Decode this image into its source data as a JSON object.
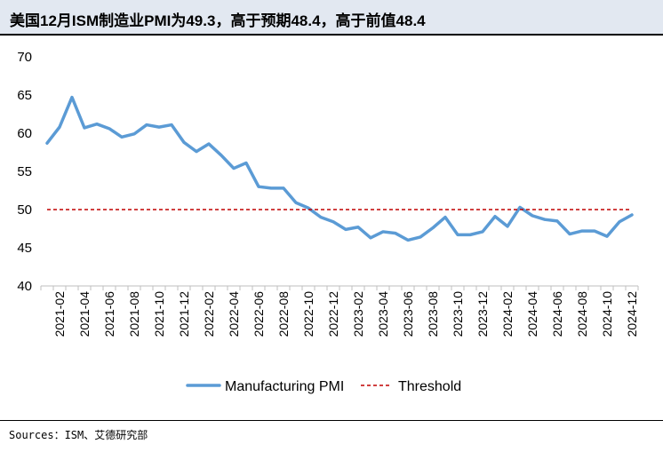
{
  "title": "美国12月ISM制造业PMI为49.3，高于预期48.4，高于前值48.4",
  "source": "Sources：ISM、艾德研究部",
  "chart_data": {
    "type": "line",
    "x": [
      "2021-01",
      "2021-02",
      "2021-03",
      "2021-04",
      "2021-05",
      "2021-06",
      "2021-07",
      "2021-08",
      "2021-09",
      "2021-10",
      "2021-11",
      "2021-12",
      "2022-01",
      "2022-02",
      "2022-03",
      "2022-04",
      "2022-05",
      "2022-06",
      "2022-07",
      "2022-08",
      "2022-09",
      "2022-10",
      "2022-11",
      "2022-12",
      "2023-01",
      "2023-02",
      "2023-03",
      "2023-04",
      "2023-05",
      "2023-06",
      "2023-07",
      "2023-08",
      "2023-09",
      "2023-10",
      "2023-11",
      "2023-12",
      "2024-01",
      "2024-02",
      "2024-03",
      "2024-04",
      "2024-05",
      "2024-06",
      "2024-07",
      "2024-08",
      "2024-09",
      "2024-10",
      "2024-11",
      "2024-12"
    ],
    "x_tick_labels": [
      "2021-02",
      "2021-04",
      "2021-06",
      "2021-08",
      "2021-10",
      "2021-12",
      "2022-02",
      "2022-04",
      "2022-06",
      "2022-08",
      "2022-10",
      "2022-12",
      "2023-02",
      "2023-04",
      "2023-06",
      "2023-08",
      "2023-10",
      "2023-12",
      "2024-02",
      "2024-04",
      "2024-06",
      "2024-08",
      "2024-10",
      "2024-12"
    ],
    "series": [
      {
        "name": "Manufacturing PMI",
        "color": "#5b9bd5",
        "values": [
          58.7,
          60.8,
          64.7,
          60.7,
          61.2,
          60.6,
          59.5,
          59.9,
          61.1,
          60.8,
          61.1,
          58.8,
          57.6,
          58.6,
          57.1,
          55.4,
          56.1,
          53.0,
          52.8,
          52.8,
          50.9,
          50.2,
          49.0,
          48.4,
          47.4,
          47.7,
          46.3,
          47.1,
          46.9,
          46.0,
          46.4,
          47.6,
          49.0,
          46.7,
          46.7,
          47.1,
          49.1,
          47.8,
          50.3,
          49.2,
          48.7,
          48.5,
          46.8,
          47.2,
          47.2,
          46.5,
          48.4,
          49.3
        ]
      },
      {
        "name": "Threshold",
        "color": "#c00000",
        "style": "dashed",
        "values": [
          50,
          50,
          50,
          50,
          50,
          50,
          50,
          50,
          50,
          50,
          50,
          50,
          50,
          50,
          50,
          50,
          50,
          50,
          50,
          50,
          50,
          50,
          50,
          50,
          50,
          50,
          50,
          50,
          50,
          50,
          50,
          50,
          50,
          50,
          50,
          50,
          50,
          50,
          50,
          50,
          50,
          50,
          50,
          50,
          50,
          50,
          50,
          50
        ]
      }
    ],
    "y_ticks": [
      40,
      45,
      50,
      55,
      60,
      65,
      70
    ],
    "ylim": [
      40,
      70
    ],
    "grid": false,
    "legend_position": "bottom"
  }
}
